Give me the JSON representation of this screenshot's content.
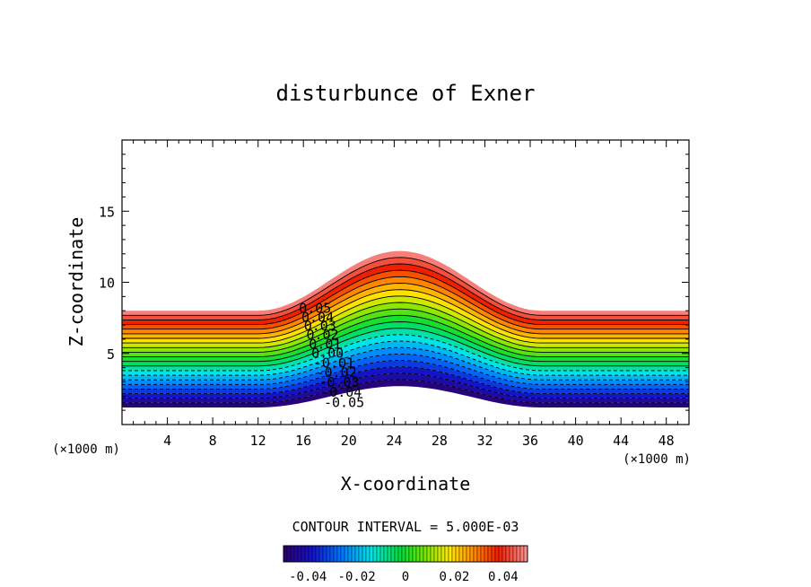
{
  "chart_data": {
    "type": "contour",
    "title": "disturbunce of Exner",
    "xlabel": "X-coordinate",
    "ylabel": "Z-coordinate",
    "x_unit": "(×1000 m)",
    "xlim": [
      0,
      50
    ],
    "ylim": [
      0,
      20
    ],
    "x_ticks": [
      4,
      8,
      12,
      16,
      20,
      24,
      28,
      32,
      36,
      40,
      44,
      48
    ],
    "y_ticks": [
      5,
      10,
      15
    ],
    "terrain": {
      "base_height": 1.2,
      "peak_height": 2.7,
      "peak_x": 24.5,
      "half_width": 12.5
    },
    "field": {
      "min": -0.045,
      "max": 0.06,
      "contour_interval": 0.005,
      "bottom_height": 1.2,
      "top_height_flat": 8.0,
      "top_height_peak": 12.2
    },
    "contour_labels": [
      {
        "text": "0.05",
        "value": 0.05
      },
      {
        "text": "0.04",
        "value": 0.04
      },
      {
        "text": "0.03",
        "value": 0.03
      },
      {
        "text": "0.02",
        "value": 0.02
      },
      {
        "text": "0.01",
        "value": 0.01
      },
      {
        "text": "0.00",
        "value": 0.0
      },
      {
        "text": "-0.01",
        "value": -0.01
      },
      {
        "text": "-0.02",
        "value": -0.02
      },
      {
        "text": "-0.03",
        "value": -0.03
      },
      {
        "text": "-0.04",
        "value": -0.04
      },
      {
        "text": "-0.05",
        "value": -0.05
      }
    ],
    "contour_interval_label": "CONTOUR INTERVAL = 5.000E-03",
    "colorbar": {
      "min": -0.05,
      "max": 0.05,
      "tick_values": [
        -0.04,
        -0.02,
        0,
        0.02,
        0.04
      ],
      "tick_labels": [
        "-0.04",
        "-0.02",
        "0",
        "0.02",
        "0.04"
      ]
    }
  }
}
